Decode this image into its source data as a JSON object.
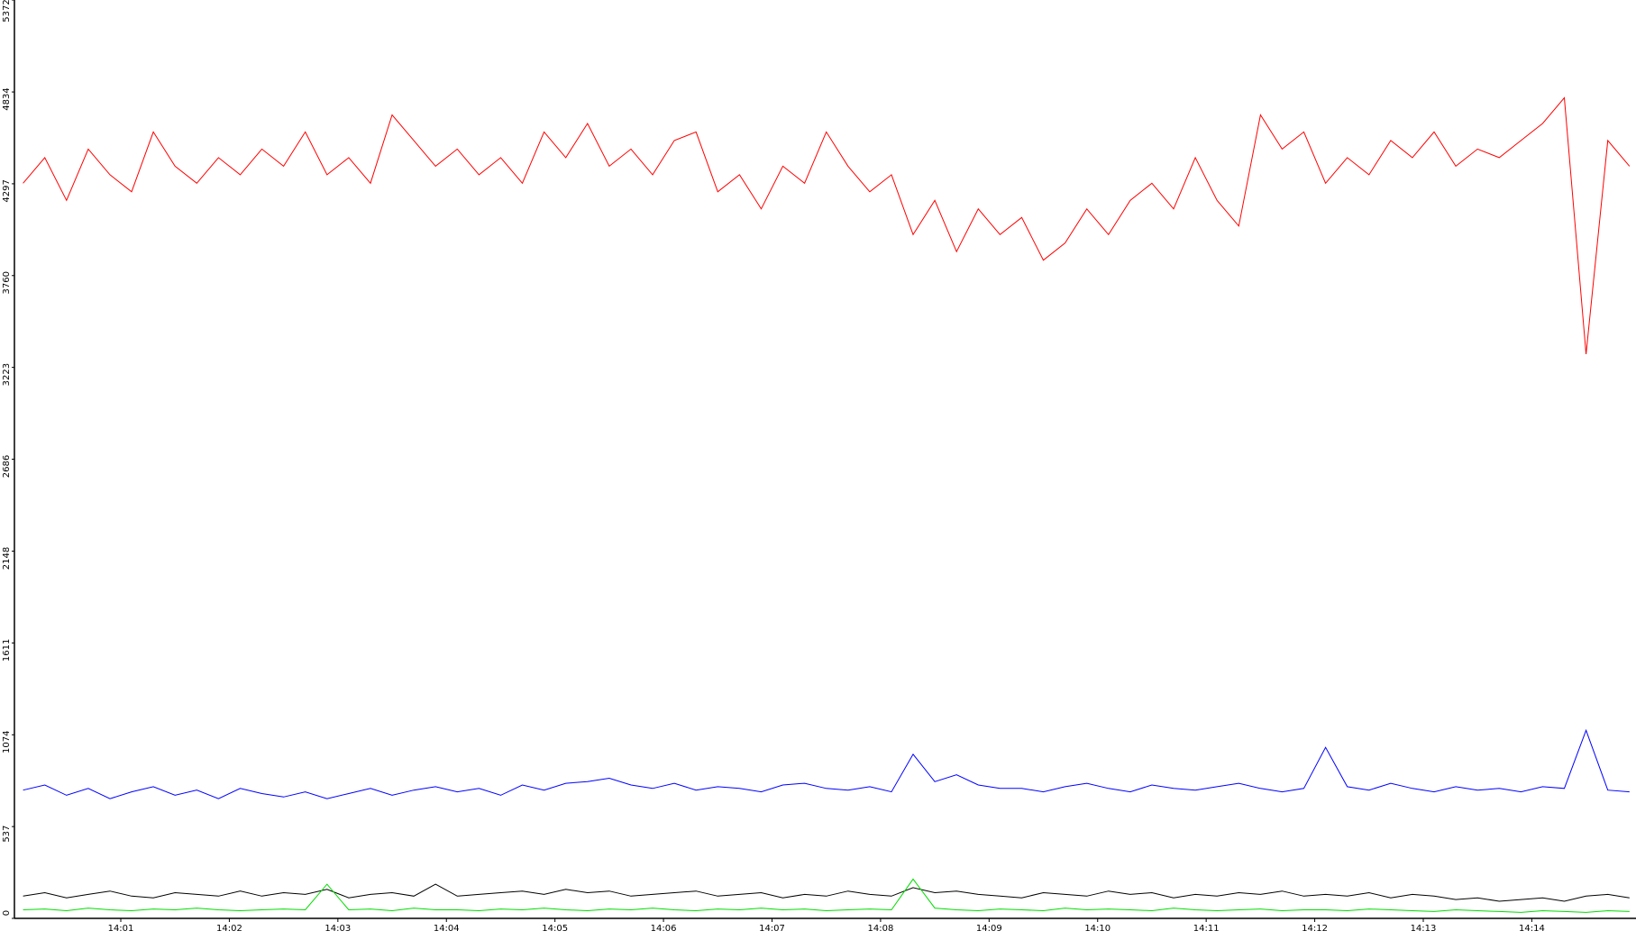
{
  "chart_data": {
    "type": "line",
    "x": [
      0.1,
      0.3,
      0.5,
      0.7,
      0.9,
      1.1,
      1.3,
      1.5,
      1.7,
      1.9,
      2.1,
      2.3,
      2.5,
      2.7,
      2.9,
      3.1,
      3.3,
      3.5,
      3.7,
      3.9,
      4.1,
      4.3,
      4.5,
      4.7,
      4.9,
      5.1,
      5.3,
      5.5,
      5.7,
      5.9,
      6.1,
      6.3,
      6.5,
      6.7,
      6.9,
      7.1,
      7.3,
      7.5,
      7.7,
      7.9,
      8.1,
      8.3,
      8.5,
      8.7,
      8.9,
      9.1,
      9.3,
      9.5,
      9.7,
      9.9,
      10.1,
      10.3,
      10.5,
      10.7,
      10.9,
      11.1,
      11.3,
      11.5,
      11.7,
      11.9,
      12.1,
      12.3,
      12.5,
      12.7,
      12.9,
      13.1,
      13.3,
      13.5,
      13.7,
      13.9,
      14.1,
      14.3,
      14.5,
      14.7,
      14.9
    ],
    "series": [
      {
        "color": "#ff0000",
        "values": [
          4300,
          4450,
          4200,
          4500,
          4350,
          4250,
          4600,
          4400,
          4300,
          4450,
          4350,
          4500,
          4400,
          4600,
          4350,
          4450,
          4300,
          4700,
          4550,
          4400,
          4500,
          4350,
          4450,
          4300,
          4600,
          4450,
          4650,
          4400,
          4500,
          4350,
          4550,
          4600,
          4250,
          4350,
          4150,
          4400,
          4300,
          4600,
          4400,
          4250,
          4350,
          4000,
          4200,
          3900,
          4150,
          4000,
          4100,
          3850,
          3950,
          4150,
          4000,
          4200,
          4300,
          4150,
          4450,
          4200,
          4050,
          4700,
          4500,
          4600,
          4300,
          4450,
          4350,
          4550,
          4450,
          4600,
          4400,
          4500,
          4450,
          4550,
          4650,
          4800,
          3300,
          4550,
          4400
        ]
      },
      {
        "color": "#0000ff",
        "values": [
          750,
          780,
          720,
          760,
          700,
          740,
          770,
          720,
          750,
          700,
          760,
          730,
          710,
          740,
          700,
          730,
          760,
          720,
          750,
          770,
          740,
          760,
          720,
          780,
          750,
          790,
          800,
          820,
          780,
          760,
          790,
          750,
          770,
          760,
          740,
          780,
          790,
          760,
          750,
          770,
          740,
          960,
          800,
          840,
          780,
          760,
          760,
          740,
          770,
          790,
          760,
          740,
          780,
          760,
          750,
          770,
          790,
          760,
          740,
          760,
          1000,
          770,
          750,
          790,
          760,
          740,
          770,
          750,
          760,
          740,
          770,
          760,
          1100,
          750,
          740
        ]
      },
      {
        "color": "#000000",
        "values": [
          130,
          150,
          120,
          140,
          160,
          130,
          120,
          150,
          140,
          130,
          160,
          130,
          150,
          140,
          170,
          120,
          140,
          150,
          130,
          200,
          130,
          140,
          150,
          160,
          140,
          170,
          150,
          160,
          130,
          140,
          150,
          160,
          130,
          140,
          150,
          120,
          140,
          130,
          160,
          140,
          130,
          180,
          150,
          160,
          140,
          130,
          120,
          150,
          140,
          130,
          160,
          140,
          150,
          120,
          140,
          130,
          150,
          140,
          160,
          130,
          140,
          130,
          150,
          120,
          140,
          130,
          110,
          120,
          100,
          110,
          120,
          100,
          130,
          140,
          120
        ]
      },
      {
        "color": "#00dd00",
        "values": [
          50,
          55,
          45,
          60,
          50,
          45,
          55,
          50,
          60,
          50,
          45,
          50,
          55,
          50,
          200,
          50,
          55,
          45,
          60,
          50,
          50,
          45,
          55,
          50,
          60,
          50,
          45,
          55,
          50,
          60,
          50,
          45,
          55,
          50,
          60,
          50,
          55,
          45,
          50,
          55,
          50,
          230,
          60,
          50,
          45,
          55,
          50,
          45,
          60,
          50,
          55,
          50,
          45,
          60,
          50,
          45,
          50,
          55,
          45,
          50,
          50,
          45,
          55,
          50,
          45,
          40,
          50,
          45,
          40,
          35,
          45,
          40,
          35,
          45,
          40
        ]
      }
    ],
    "ylim": [
      0,
      5372
    ],
    "yticks": [
      0,
      537,
      1074,
      1611,
      2148,
      2686,
      3223,
      3760,
      4297,
      4834,
      5372
    ],
    "xlim": [
      0.02,
      14.96
    ],
    "xticks": [
      {
        "value": 1,
        "label": "14:01"
      },
      {
        "value": 2,
        "label": "14:02"
      },
      {
        "value": 3,
        "label": "14:03"
      },
      {
        "value": 4,
        "label": "14:04"
      },
      {
        "value": 5,
        "label": "14:05"
      },
      {
        "value": 6,
        "label": "14:06"
      },
      {
        "value": 7,
        "label": "14:07"
      },
      {
        "value": 8,
        "label": "14:08"
      },
      {
        "value": 9,
        "label": "14:09"
      },
      {
        "value": 10,
        "label": "14:10"
      },
      {
        "value": 11,
        "label": "14:11"
      },
      {
        "value": 12,
        "label": "14:12"
      },
      {
        "value": 13,
        "label": "14:13"
      },
      {
        "value": 14,
        "label": "14:14"
      }
    ]
  }
}
